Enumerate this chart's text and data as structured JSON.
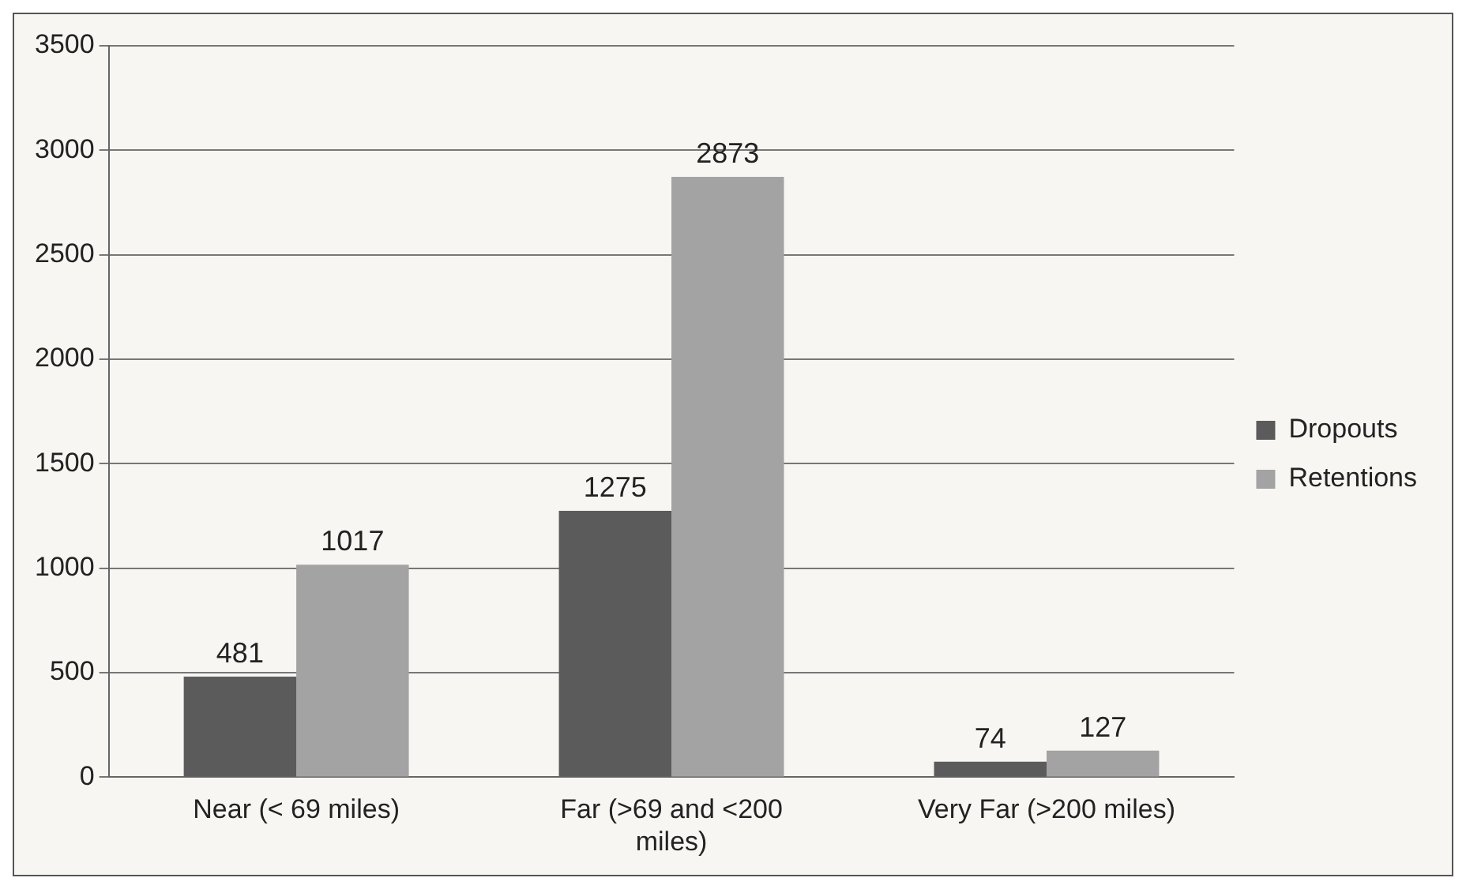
{
  "chart_data": {
    "type": "bar",
    "categories": [
      "Near (< 69 miles)",
      "Far (>69 and <200 miles)",
      "Very Far (>200 miles)"
    ],
    "series": [
      {
        "name": "Dropouts",
        "color": "#5b5b5b",
        "values": [
          481,
          1275,
          74
        ]
      },
      {
        "name": "Retentions",
        "color": "#a3a3a3",
        "values": [
          1017,
          2873,
          127
        ]
      }
    ],
    "ylim": [
      0,
      3500
    ],
    "yticks": [
      0,
      500,
      1000,
      1500,
      2000,
      2500,
      3000,
      3500
    ],
    "grid": "y",
    "legend": "right",
    "data_labels": true
  }
}
